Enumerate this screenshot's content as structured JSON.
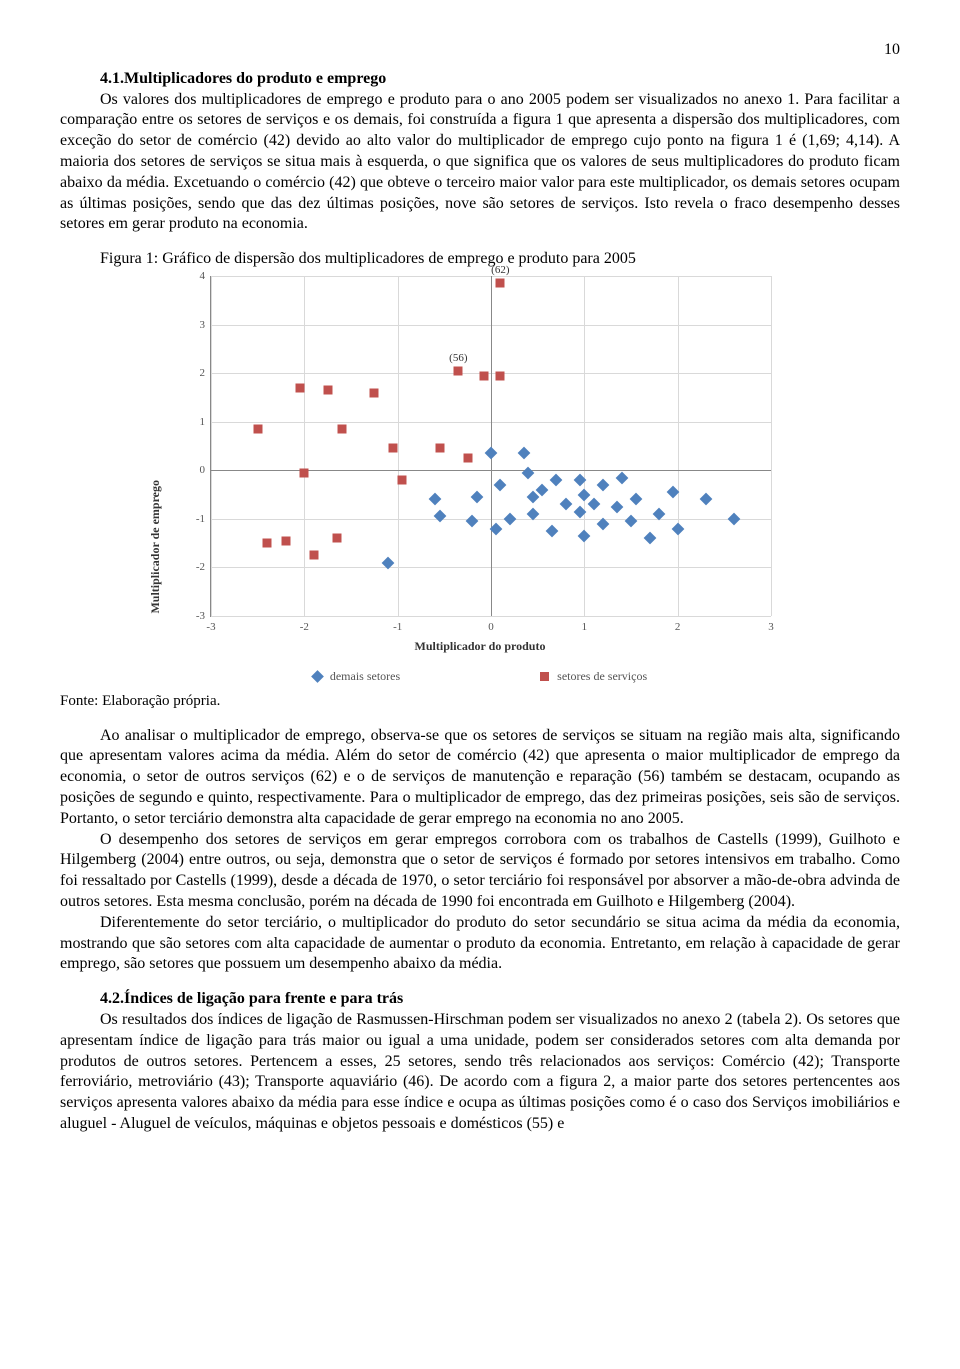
{
  "page_number": "10",
  "section_4_1": {
    "heading": "4.1.Multiplicadores do produto e emprego",
    "para": "Os valores dos multiplicadores de emprego e produto para o ano 2005 podem ser visualizados no anexo 1. Para facilitar a comparação entre os setores de serviços e os demais, foi construída a figura 1 que apresenta a dispersão dos multiplicadores, com exceção do setor de comércio (42) devido ao alto valor do multiplicador de emprego cujo ponto na figura 1 é (1,69; 4,14). A maioria dos setores de serviços se situa mais à esquerda, o que significa que os valores de seus multiplicadores do produto ficam abaixo da média. Excetuando o comércio (42) que obteve o terceiro maior valor para este multiplicador, os demais setores ocupam as últimas posições, sendo que das dez últimas posições, nove são setores de serviços. Isto revela o fraco desempenho desses setores em gerar produto na economia."
  },
  "figure1": {
    "caption": "Figura 1: Gráfico de dispersão dos multiplicadores de emprego e produto para 2005",
    "source": "Fonte: Elaboração própria.",
    "chart": {
      "type": "scatter",
      "x_axis_title": "Multiplicador  do produto",
      "y_axis_title": "Multiplicador de emprego",
      "xlim": [
        -3,
        3
      ],
      "ylim": [
        -3,
        4
      ],
      "xticks": [
        -3,
        -2,
        -1,
        0,
        1,
        2,
        3
      ],
      "yticks": [
        -3,
        -2,
        -1,
        0,
        1,
        2,
        3,
        4
      ],
      "background_color": "#ffffff",
      "grid_color": "#d9d9d9",
      "axis_color": "#888888",
      "marker_size": 9,
      "series": [
        {
          "name": "demais setores",
          "color": "#4f81bd",
          "marker": "diamond",
          "points": [
            {
              "x": -1.1,
              "y": -1.9
            },
            {
              "x": -0.6,
              "y": -0.6
            },
            {
              "x": -0.55,
              "y": -0.95
            },
            {
              "x": -0.2,
              "y": -1.05
            },
            {
              "x": -0.15,
              "y": -0.55
            },
            {
              "x": 0.0,
              "y": 0.35
            },
            {
              "x": 0.05,
              "y": -1.2
            },
            {
              "x": 0.1,
              "y": -0.3
            },
            {
              "x": 0.2,
              "y": -1.0
            },
            {
              "x": 0.35,
              "y": 0.35
            },
            {
              "x": 0.4,
              "y": -0.05
            },
            {
              "x": 0.45,
              "y": -0.55
            },
            {
              "x": 0.45,
              "y": -0.9
            },
            {
              "x": 0.55,
              "y": -0.4
            },
            {
              "x": 0.65,
              "y": -1.25
            },
            {
              "x": 0.7,
              "y": -0.2
            },
            {
              "x": 0.8,
              "y": -0.7
            },
            {
              "x": 0.95,
              "y": -0.2
            },
            {
              "x": 0.95,
              "y": -0.85
            },
            {
              "x": 1.0,
              "y": -0.5
            },
            {
              "x": 1.0,
              "y": -1.35
            },
            {
              "x": 1.1,
              "y": -0.7
            },
            {
              "x": 1.2,
              "y": -0.3
            },
            {
              "x": 1.2,
              "y": -1.1
            },
            {
              "x": 1.35,
              "y": -0.75
            },
            {
              "x": 1.4,
              "y": -0.15
            },
            {
              "x": 1.5,
              "y": -1.05
            },
            {
              "x": 1.55,
              "y": -0.6
            },
            {
              "x": 1.7,
              "y": -1.4
            },
            {
              "x": 1.8,
              "y": -0.9
            },
            {
              "x": 1.95,
              "y": -0.45
            },
            {
              "x": 2.0,
              "y": -1.2
            },
            {
              "x": 2.3,
              "y": -0.6
            },
            {
              "x": 2.6,
              "y": -1.0
            }
          ]
        },
        {
          "name": "setores de serviços",
          "color": "#c0504d",
          "marker": "square",
          "points": [
            {
              "x": 0.1,
              "y": 3.85,
              "label": "(62)"
            },
            {
              "x": -0.35,
              "y": 2.05,
              "label": "(56)"
            },
            {
              "x": -2.05,
              "y": 1.7
            },
            {
              "x": -1.75,
              "y": 1.65
            },
            {
              "x": -1.25,
              "y": 1.6
            },
            {
              "x": -0.07,
              "y": 1.95
            },
            {
              "x": 0.1,
              "y": 1.95
            },
            {
              "x": -2.5,
              "y": 0.85
            },
            {
              "x": -1.6,
              "y": 0.85
            },
            {
              "x": -1.05,
              "y": 0.45
            },
            {
              "x": -0.55,
              "y": 0.45
            },
            {
              "x": -0.25,
              "y": 0.25
            },
            {
              "x": -2.0,
              "y": -0.05
            },
            {
              "x": -0.95,
              "y": -0.2
            },
            {
              "x": -2.4,
              "y": -1.5
            },
            {
              "x": -2.2,
              "y": -1.45
            },
            {
              "x": -1.9,
              "y": -1.75
            },
            {
              "x": -1.65,
              "y": -1.4
            }
          ]
        }
      ],
      "legend": [
        {
          "label": "demais setores",
          "color": "#4f81bd",
          "marker": "diamond"
        },
        {
          "label": "setores de serviços",
          "color": "#c0504d",
          "marker": "square"
        }
      ]
    }
  },
  "post_figure_paras": [
    "Ao analisar o multiplicador de emprego, observa-se que os setores de serviços se situam na região mais alta, significando que apresentam valores acima da média. Além do setor de comércio (42) que apresenta o maior multiplicador de emprego da economia, o setor de outros serviços (62) e o de serviços de manutenção e reparação (56) também se destacam, ocupando as posições de segundo e quinto, respectivamente. Para o multiplicador de emprego, das dez primeiras posições, seis são de serviços. Portanto, o setor terciário demonstra alta capacidade de gerar emprego na economia no ano 2005.",
    "O desempenho dos setores de serviços em gerar empregos corrobora com os trabalhos de Castells (1999), Guilhoto e Hilgemberg (2004) entre outros, ou seja, demonstra que o setor de serviços é formado por setores intensivos em trabalho. Como foi ressaltado por Castells (1999), desde a década de 1970, o setor terciário foi responsável por absorver a mão-de-obra advinda de outros setores. Esta mesma conclusão, porém na década de 1990 foi encontrada em Guilhoto e Hilgemberg (2004).",
    "Diferentemente do setor terciário, o multiplicador do produto do setor secundário se situa acima da média da economia, mostrando que são setores com alta capacidade de aumentar o produto da economia. Entretanto, em relação à capacidade de gerar emprego, são setores que possuem um desempenho abaixo da média."
  ],
  "section_4_2": {
    "heading": "4.2.Índices de ligação para frente e para trás",
    "para": "Os resultados dos índices de ligação de Rasmussen-Hirschman podem ser visualizados no anexo 2 (tabela 2). Os setores que apresentam índice de ligação para trás maior ou igual a uma unidade, podem ser considerados setores com alta demanda por produtos de outros setores. Pertencem a esses, 25 setores, sendo três relacionados aos serviços: Comércio (42); Transporte ferroviário, metroviário (43); Transporte aquaviário (46). De acordo com a figura 2, a maior parte dos setores pertencentes aos serviços apresenta valores abaixo da média para esse índice e ocupa as últimas posições como é o caso dos Serviços imobiliários e aluguel - Aluguel de veículos, máquinas e objetos pessoais e domésticos (55) e"
  }
}
